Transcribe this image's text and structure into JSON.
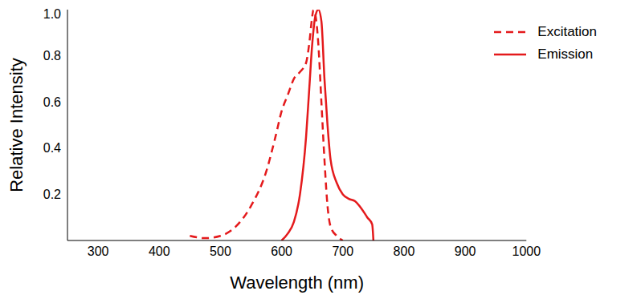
{
  "chart_data": {
    "type": "line",
    "x_label": "Wavelength (nm)",
    "y_label": "Relative Intensity",
    "xlim": [
      250,
      1000
    ],
    "xticks": [
      300,
      400,
      500,
      600,
      700,
      800,
      900,
      1000
    ],
    "ylim": [
      0,
      1
    ],
    "yticks": [
      0.2,
      0.4,
      0.6,
      0.8,
      {
        "value": 1,
        "label": "1.0"
      }
    ],
    "legend": "upper right",
    "grid": false,
    "series": [
      {
        "name": "Excitation",
        "color": "#e41a1c",
        "line_style": "dashed",
        "x": [
          450,
          475,
          500,
          525,
          550,
          575,
          590,
          600,
          610,
          620,
          630,
          640,
          645,
          650,
          652,
          655,
          660,
          665,
          670,
          675,
          680,
          690,
          700
        ],
        "values": [
          0.02,
          0.01,
          0.02,
          0.06,
          0.15,
          0.3,
          0.45,
          0.56,
          0.63,
          0.7,
          0.73,
          0.77,
          0.85,
          0.97,
          1.0,
          0.98,
          0.85,
          0.6,
          0.35,
          0.15,
          0.06,
          0.02,
          0.0
        ]
      },
      {
        "name": "Emission",
        "color": "#e41a1c",
        "line_style": "solid",
        "x": [
          600,
          610,
          620,
          630,
          640,
          645,
          650,
          655,
          660,
          665,
          670,
          675,
          680,
          690,
          700,
          710,
          720,
          730,
          740,
          748,
          750
        ],
        "values": [
          0.0,
          0.03,
          0.08,
          0.2,
          0.45,
          0.65,
          0.85,
          0.97,
          1.0,
          0.95,
          0.7,
          0.5,
          0.35,
          0.25,
          0.2,
          0.18,
          0.17,
          0.14,
          0.1,
          0.07,
          0.0
        ]
      }
    ]
  }
}
